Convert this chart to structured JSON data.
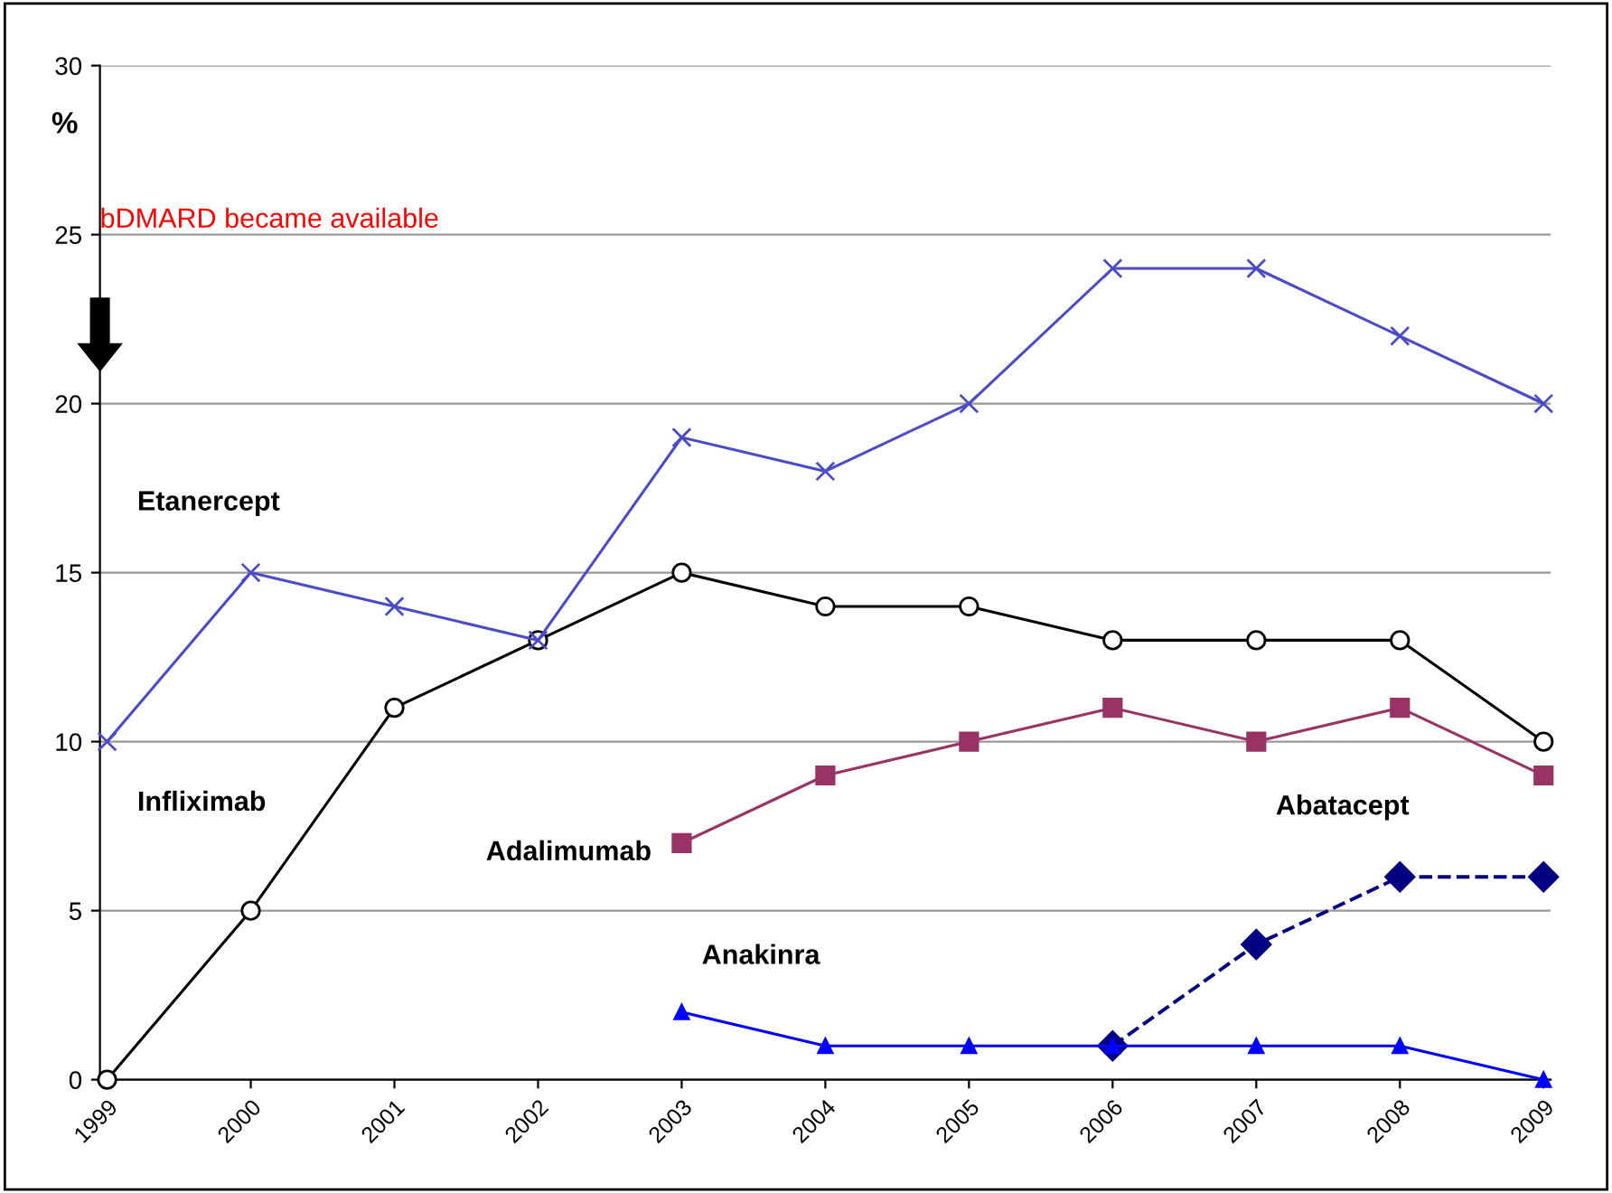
{
  "chart_data": {
    "type": "line",
    "ylabel": "%",
    "categories": [
      "1999",
      "2000",
      "2001",
      "2002",
      "2003",
      "2004",
      "2005",
      "2006",
      "2007",
      "2008",
      "2009"
    ],
    "series": [
      {
        "name": "Etanercept",
        "color": "#4b4bc8",
        "marker": "cross",
        "line_style": "solid",
        "values": [
          10,
          15,
          14,
          13,
          19,
          18,
          20,
          24,
          24,
          22,
          20
        ]
      },
      {
        "name": "Infliximab",
        "color": "#000000",
        "marker": "circle",
        "line_style": "solid",
        "values": [
          0,
          5,
          11,
          13,
          15,
          14,
          14,
          13,
          13,
          13,
          10
        ]
      },
      {
        "name": "Adalimumab",
        "color": "#993366",
        "marker": "square",
        "line_style": "solid",
        "values": [
          null,
          null,
          null,
          null,
          7,
          9,
          10,
          11,
          10,
          11,
          9
        ]
      },
      {
        "name": "Abatacept",
        "color": "#000080",
        "marker": "diamond",
        "line_style": "dashed",
        "values": [
          null,
          null,
          null,
          null,
          null,
          null,
          null,
          1,
          4,
          6,
          6
        ]
      },
      {
        "name": "Anakinra",
        "color": "#0000ff",
        "marker": "triangle",
        "line_style": "solid",
        "values": [
          null,
          null,
          null,
          null,
          2,
          1,
          1,
          1,
          1,
          1,
          0
        ]
      }
    ],
    "ylim": [
      0,
      30
    ],
    "yticks": [
      0,
      5,
      10,
      15,
      20,
      25,
      30
    ],
    "grid": "y",
    "legend": false,
    "annotations": [
      "bDMARD became available"
    ]
  }
}
